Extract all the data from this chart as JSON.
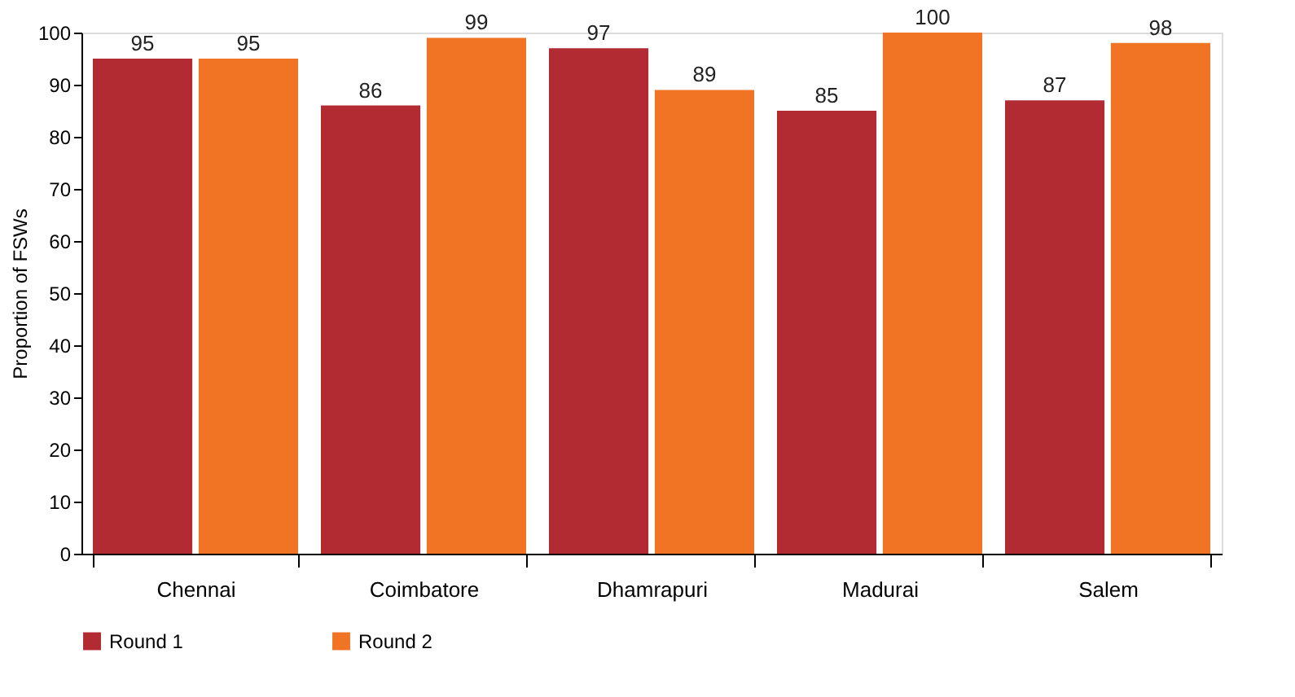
{
  "chart_data": {
    "type": "bar",
    "ylabel": "Proportion of FSWs",
    "categories": [
      "Chennai",
      "Coimbatore",
      "Dhamrapuri",
      "Madurai",
      "Salem"
    ],
    "series": [
      {
        "name": "Round 1",
        "color": "#b22a32",
        "values": [
          95,
          86,
          97,
          85,
          87
        ]
      },
      {
        "name": "Round 2",
        "color": "#f07424",
        "values": [
          95,
          99,
          89,
          100,
          98
        ]
      }
    ],
    "ylim": [
      0,
      100
    ],
    "yticks": [
      0,
      10,
      20,
      30,
      40,
      50,
      60,
      70,
      80,
      90,
      100
    ],
    "data_labels": true,
    "grid": false,
    "legend": "bottom"
  }
}
